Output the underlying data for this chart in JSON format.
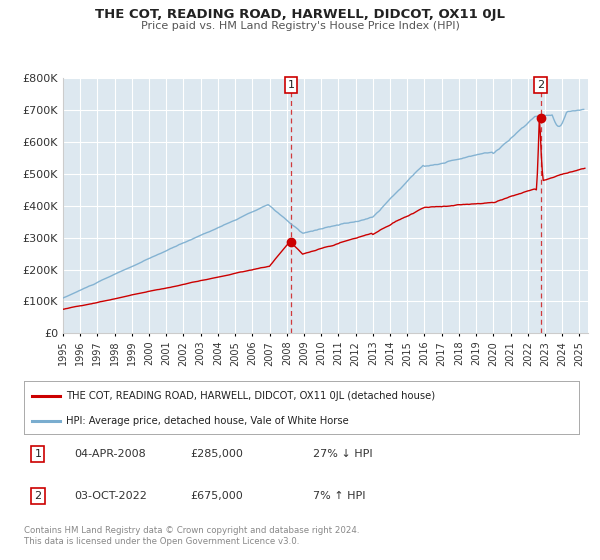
{
  "title": "THE COT, READING ROAD, HARWELL, DIDCOT, OX11 0JL",
  "subtitle": "Price paid vs. HM Land Registry's House Price Index (HPI)",
  "background_color": "#ffffff",
  "plot_bg_color": "#dde8f0",
  "grid_color": "#ffffff",
  "ylim": [
    0,
    800000
  ],
  "xlim_start": 1995.0,
  "xlim_end": 2025.5,
  "yticks": [
    0,
    100000,
    200000,
    300000,
    400000,
    500000,
    600000,
    700000,
    800000
  ],
  "ytick_labels": [
    "£0",
    "£100K",
    "£200K",
    "£300K",
    "£400K",
    "£500K",
    "£600K",
    "£700K",
    "£800K"
  ],
  "xtick_years": [
    1995,
    1996,
    1997,
    1998,
    1999,
    2000,
    2001,
    2002,
    2003,
    2004,
    2005,
    2006,
    2007,
    2008,
    2009,
    2010,
    2011,
    2012,
    2013,
    2014,
    2015,
    2016,
    2017,
    2018,
    2019,
    2020,
    2021,
    2022,
    2023,
    2024,
    2025
  ],
  "sale1_x": 2008.25,
  "sale1_y": 285000,
  "sale2_x": 2022.75,
  "sale2_y": 675000,
  "vline1_x": 2008.25,
  "vline2_x": 2022.75,
  "red_line_color": "#cc0000",
  "blue_line_color": "#7aadcf",
  "sale_dot_color": "#cc0000",
  "legend_text1": "THE COT, READING ROAD, HARWELL, DIDCOT, OX11 0JL (detached house)",
  "legend_text2": "HPI: Average price, detached house, Vale of White Horse",
  "annotation1_label": "1",
  "annotation1_date": "04-APR-2008",
  "annotation1_price": "£285,000",
  "annotation1_hpi": "27% ↓ HPI",
  "annotation2_label": "2",
  "annotation2_date": "03-OCT-2022",
  "annotation2_price": "£675,000",
  "annotation2_hpi": "7% ↑ HPI",
  "footer": "Contains HM Land Registry data © Crown copyright and database right 2024.\nThis data is licensed under the Open Government Licence v3.0."
}
